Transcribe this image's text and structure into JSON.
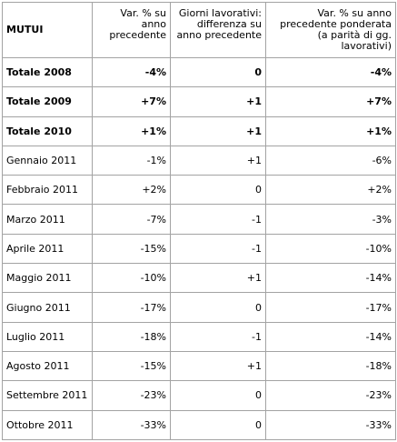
{
  "table": {
    "headers": [
      "MUTUI",
      "Var. % su anno precedente",
      "Giorni lavorativi: differenza su anno precedente",
      "Var. % su anno precedente ponderata (a parità di gg. lavorativi)"
    ],
    "rows": [
      {
        "label": "Totale 2008",
        "var": "-4%",
        "giorni": "0",
        "pond": "-4%",
        "bold": true
      },
      {
        "label": "Totale 2009",
        "var": "+7%",
        "giorni": "+1",
        "pond": "+7%",
        "bold": true
      },
      {
        "label": "Totale 2010",
        "var": "+1%",
        "giorni": "+1",
        "pond": "+1%",
        "bold": true
      },
      {
        "label": "Gennaio 2011",
        "var": "-1%",
        "giorni": "+1",
        "pond": "-6%",
        "bold": false
      },
      {
        "label": "Febbraio 2011",
        "var": "+2%",
        "giorni": "0",
        "pond": "+2%",
        "bold": false
      },
      {
        "label": "Marzo 2011",
        "var": "-7%",
        "giorni": "-1",
        "pond": "-3%",
        "bold": false
      },
      {
        "label": "Aprile 2011",
        "var": "-15%",
        "giorni": "-1",
        "pond": "-10%",
        "bold": false
      },
      {
        "label": "Maggio 2011",
        "var": "-10%",
        "giorni": "+1",
        "pond": "-14%",
        "bold": false
      },
      {
        "label": "Giugno 2011",
        "var": "-17%",
        "giorni": "0",
        "pond": "-17%",
        "bold": false
      },
      {
        "label": "Luglio 2011",
        "var": "-18%",
        "giorni": "-1",
        "pond": "-14%",
        "bold": false
      },
      {
        "label": "Agosto 2011",
        "var": "-15%",
        "giorni": "+1",
        "pond": "-18%",
        "bold": false
      },
      {
        "label": "Settembre 2011",
        "var": "-23%",
        "giorni": "0",
        "pond": "-23%",
        "bold": false
      },
      {
        "label": "Ottobre 2011",
        "var": "-33%",
        "giorni": "0",
        "pond": "-33%",
        "bold": false
      }
    ]
  }
}
